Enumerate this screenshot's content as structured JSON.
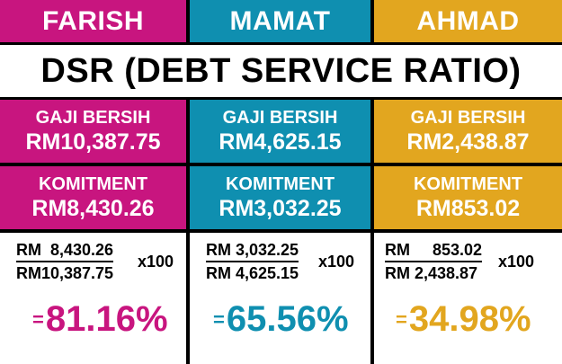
{
  "title": "DSR (DEBT SERVICE RATIO)",
  "colors": {
    "farish": "#c8157f",
    "mamat": "#0f8fb0",
    "ahmad": "#e2a61f"
  },
  "columns": [
    {
      "name": "FARISH",
      "gaji_label": "GAJI BERSIH",
      "gaji_value": "RM10,387.75",
      "komitment_label": "KOMITMENT",
      "komitment_value": "RM8,430.26",
      "numerator": "RM  8,430.26",
      "denominator": "RM10,387.75",
      "multiplier": "x100",
      "equals": "=",
      "result": "81.16%"
    },
    {
      "name": "MAMAT",
      "gaji_label": "GAJI BERSIH",
      "gaji_value": "RM4,625.15",
      "komitment_label": "KOMITMENT",
      "komitment_value": "RM3,032.25",
      "numerator": "RM 3,032.25",
      "denominator": "RM 4,625.15",
      "multiplier": "x100",
      "equals": "=",
      "result": "65.56%"
    },
    {
      "name": "AHMAD",
      "gaji_label": "GAJI BERSIH",
      "gaji_value": "RM2,438.87",
      "komitment_label": "KOMITMENT",
      "komitment_value": "RM853.02",
      "numerator": "RM     853.02",
      "denominator": "RM 2,438.87",
      "multiplier": "x100",
      "equals": "=",
      "result": "34.98%"
    }
  ]
}
